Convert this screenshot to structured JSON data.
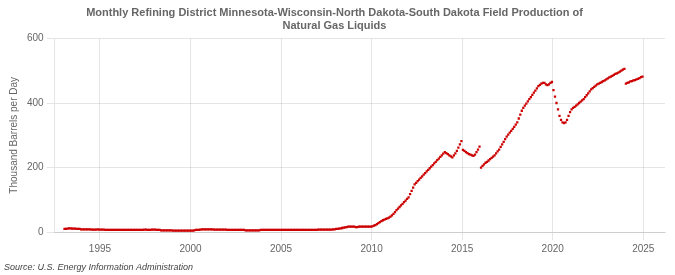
{
  "chart_data": {
    "type": "scatter",
    "title": "Monthly Refining District Minnesota-Wisconsin-North Dakota-South Dakota Field Production of\nNatural Gas Liquids",
    "ylabel": "Thousand Barrels per Day",
    "annotations": [
      "Source: U.S. Energy Information Administration"
    ],
    "color": "#cc0000",
    "marker": "square",
    "grid": true,
    "legend": false,
    "xlim": [
      1992.5,
      2026.2
    ],
    "xticks": [
      1995,
      2000,
      2005,
      2010,
      2015,
      2020,
      2025
    ],
    "ylim": [
      0,
      600
    ],
    "yticks": [
      0,
      200,
      400,
      600
    ],
    "x": [
      1993.0416666666667,
      1993.125,
      1993.2083333333333,
      1993.2916666666667,
      1993.375,
      1993.4583333333333,
      1993.5416666666667,
      1993.625,
      1993.7083333333333,
      1993.7916666666667,
      1993.875,
      1993.9583333333333,
      1994.0416666666667,
      1994.125,
      1994.2083333333333,
      1994.2916666666667,
      1994.375,
      1994.4583333333333,
      1994.5416666666667,
      1994.625,
      1994.7083333333333,
      1994.7916666666667,
      1994.875,
      1994.9583333333333,
      1995.0416666666667,
      1995.125,
      1995.2083333333333,
      1995.2916666666667,
      1995.375,
      1995.4583333333333,
      1995.5416666666667,
      1995.625,
      1995.7083333333333,
      1995.7916666666667,
      1995.875,
      1995.9583333333333,
      1996.0416666666667,
      1996.125,
      1996.2083333333333,
      1996.2916666666667,
      1996.375,
      1996.4583333333333,
      1996.5416666666667,
      1996.625,
      1996.7083333333333,
      1996.7916666666667,
      1996.875,
      1996.9583333333333,
      1997.0416666666667,
      1997.125,
      1997.2083333333333,
      1997.2916666666667,
      1997.375,
      1997.4583333333333,
      1997.5416666666667,
      1997.625,
      1997.7083333333333,
      1997.7916666666667,
      1997.875,
      1997.9583333333333,
      1998.0416666666667,
      1998.125,
      1998.2083333333333,
      1998.2916666666667,
      1998.375,
      1998.4583333333333,
      1998.5416666666667,
      1998.625,
      1998.7083333333333,
      1998.7916666666667,
      1998.875,
      1998.9583333333333,
      1999.0416666666667,
      1999.125,
      1999.2083333333333,
      1999.2916666666667,
      1999.375,
      1999.4583333333333,
      1999.5416666666667,
      1999.625,
      1999.7083333333333,
      1999.7916666666667,
      1999.875,
      1999.9583333333333,
      2000.0416666666667,
      2000.125,
      2000.2083333333333,
      2000.2916666666667,
      2000.375,
      2000.4583333333333,
      2000.5416666666667,
      2000.625,
      2000.7083333333333,
      2000.7916666666667,
      2000.875,
      2000.9583333333333,
      2001.0416666666667,
      2001.125,
      2001.2083333333333,
      2001.2916666666667,
      2001.375,
      2001.4583333333333,
      2001.5416666666667,
      2001.625,
      2001.7083333333333,
      2001.7916666666667,
      2001.875,
      2001.9583333333333,
      2002.0416666666667,
      2002.125,
      2002.2083333333333,
      2002.2916666666667,
      2002.375,
      2002.4583333333333,
      2002.5416666666667,
      2002.625,
      2002.7083333333333,
      2002.7916666666667,
      2002.875,
      2002.9583333333333,
      2003.0416666666667,
      2003.125,
      2003.2083333333333,
      2003.2916666666667,
      2003.375,
      2003.4583333333333,
      2003.5416666666667,
      2003.625,
      2003.7083333333333,
      2003.7916666666667,
      2003.875,
      2003.9583333333333,
      2004.0416666666667,
      2004.125,
      2004.2083333333333,
      2004.2916666666667,
      2004.375,
      2004.4583333333333,
      2004.5416666666667,
      2004.625,
      2004.7083333333333,
      2004.7916666666667,
      2004.875,
      2004.9583333333333,
      2005.0416666666667,
      2005.125,
      2005.2083333333333,
      2005.2916666666667,
      2005.375,
      2005.4583333333333,
      2005.5416666666667,
      2005.625,
      2005.7083333333333,
      2005.7916666666667,
      2005.875,
      2005.9583333333333,
      2006.0416666666667,
      2006.125,
      2006.2083333333333,
      2006.2916666666667,
      2006.375,
      2006.4583333333333,
      2006.5416666666667,
      2006.625,
      2006.7083333333333,
      2006.7916666666667,
      2006.875,
      2006.9583333333333,
      2007.0416666666667,
      2007.125,
      2007.2083333333333,
      2007.2916666666667,
      2007.375,
      2007.4583333333333,
      2007.5416666666667,
      2007.625,
      2007.7083333333333,
      2007.7916666666667,
      2007.875,
      2007.9583333333333,
      2008.0416666666667,
      2008.125,
      2008.2083333333333,
      2008.2916666666667,
      2008.375,
      2008.4583333333333,
      2008.5416666666667,
      2008.625,
      2008.7083333333333,
      2008.7916666666667,
      2008.875,
      2008.9583333333333,
      2009.0416666666667,
      2009.125,
      2009.2083333333333,
      2009.2916666666667,
      2009.375,
      2009.4583333333333,
      2009.5416666666667,
      2009.625,
      2009.7083333333333,
      2009.7916666666667,
      2009.875,
      2009.9583333333333,
      2010.0416666666667,
      2010.125,
      2010.2083333333333,
      2010.2916666666667,
      2010.375,
      2010.4583333333333,
      2010.5416666666667,
      2010.625,
      2010.7083333333333,
      2010.7916666666667,
      2010.875,
      2010.9583333333333,
      2011.0416666666667,
      2011.125,
      2011.2083333333333,
      2011.2916666666667,
      2011.375,
      2011.4583333333333,
      2011.5416666666667,
      2011.625,
      2011.7083333333333,
      2011.7916666666667,
      2011.875,
      2011.9583333333333,
      2012.0416666666667,
      2012.125,
      2012.2083333333333,
      2012.2916666666667,
      2012.375,
      2012.4583333333333,
      2012.5416666666667,
      2012.625,
      2012.7083333333333,
      2012.7916666666667,
      2012.875,
      2012.9583333333333,
      2013.0416666666667,
      2013.125,
      2013.2083333333333,
      2013.2916666666667,
      2013.375,
      2013.4583333333333,
      2013.5416666666667,
      2013.625,
      2013.7083333333333,
      2013.7916666666667,
      2013.875,
      2013.9583333333333,
      2014.0416666666667,
      2014.125,
      2014.2083333333333,
      2014.2916666666667,
      2014.375,
      2014.4583333333333,
      2014.5416666666667,
      2014.625,
      2014.7083333333333,
      2014.7916666666667,
      2014.875,
      2014.9583333333333,
      2015.0416666666667,
      2015.125,
      2015.2083333333333,
      2015.2916666666667,
      2015.375,
      2015.4583333333333,
      2015.5416666666667,
      2015.625,
      2015.7083333333333,
      2015.7916666666667,
      2015.875,
      2015.9583333333333,
      2016.0416666666667,
      2016.125,
      2016.2083333333333,
      2016.2916666666667,
      2016.375,
      2016.4583333333333,
      2016.5416666666667,
      2016.625,
      2016.7083333333333,
      2016.7916666666667,
      2016.875,
      2016.9583333333333,
      2017.0416666666667,
      2017.125,
      2017.2083333333333,
      2017.2916666666667,
      2017.375,
      2017.4583333333333,
      2017.5416666666667,
      2017.625,
      2017.7083333333333,
      2017.7916666666667,
      2017.875,
      2017.9583333333333,
      2018.0416666666667,
      2018.125,
      2018.2083333333333,
      2018.2916666666667,
      2018.375,
      2018.4583333333333,
      2018.5416666666667,
      2018.625,
      2018.7083333333333,
      2018.7916666666667,
      2018.875,
      2018.9583333333333,
      2019.0416666666667,
      2019.125,
      2019.2083333333333,
      2019.2916666666667,
      2019.375,
      2019.4583333333333,
      2019.5416666666667,
      2019.625,
      2019.7083333333333,
      2019.7916666666667,
      2019.875,
      2019.9583333333333,
      2020.0416666666667,
      2020.125,
      2020.2083333333333,
      2020.2916666666667,
      2020.375,
      2020.4583333333333,
      2020.5416666666667,
      2020.625,
      2020.7083333333333,
      2020.7916666666667,
      2020.875,
      2020.9583333333333,
      2021.0416666666667,
      2021.125,
      2021.2083333333333,
      2021.2916666666667,
      2021.375,
      2021.4583333333333,
      2021.5416666666667,
      2021.625,
      2021.7083333333333,
      2021.7916666666667,
      2021.875,
      2021.9583333333333,
      2022.0416666666667,
      2022.125,
      2022.2083333333333,
      2022.2916666666667,
      2022.375,
      2022.4583333333333,
      2022.5416666666667,
      2022.625,
      2022.7083333333333,
      2022.7916666666667,
      2022.875,
      2022.9583333333333,
      2023.0416666666667,
      2023.125,
      2023.2083333333333,
      2023.2916666666667,
      2023.375,
      2023.4583333333333,
      2023.5416666666667,
      2023.625,
      2023.7083333333333,
      2023.7916666666667,
      2023.875,
      2023.9583333333333,
      2024.0416666666667,
      2024.125,
      2024.2083333333333,
      2024.2916666666667,
      2024.375,
      2024.4583333333333,
      2024.5416666666667,
      2024.625,
      2024.7083333333333,
      2024.7916666666667,
      2024.875,
      2024.9583333333333
    ],
    "values": [
      10,
      10,
      11,
      12,
      12,
      11,
      11,
      11,
      10,
      10,
      10,
      9,
      9,
      9,
      9,
      9,
      9,
      9,
      8,
      8,
      8,
      8,
      9,
      8,
      8,
      8,
      8,
      7,
      7,
      7,
      7,
      7,
      7,
      7,
      7,
      7,
      7,
      7,
      7,
      7,
      7,
      7,
      7,
      7,
      7,
      7,
      7,
      7,
      7,
      7,
      7,
      7,
      7,
      8,
      8,
      7,
      7,
      7,
      8,
      8,
      8,
      7,
      7,
      7,
      6,
      6,
      6,
      6,
      6,
      6,
      6,
      6,
      5,
      5,
      5,
      5,
      5,
      5,
      5,
      5,
      5,
      5,
      5,
      5,
      5,
      5,
      6,
      7,
      7,
      7,
      8,
      9,
      9,
      9,
      9,
      9,
      9,
      9,
      9,
      8,
      8,
      8,
      8,
      8,
      8,
      8,
      8,
      8,
      7,
      7,
      7,
      7,
      7,
      7,
      7,
      7,
      7,
      7,
      7,
      7,
      6,
      6,
      6,
      6,
      6,
      6,
      6,
      6,
      6,
      6,
      7,
      7,
      7,
      7,
      7,
      7,
      7,
      7,
      7,
      7,
      7,
      7,
      7,
      7,
      7,
      7,
      7,
      7,
      7,
      7,
      7,
      7,
      7,
      7,
      7,
      7,
      7,
      7,
      7,
      7,
      7,
      7,
      7,
      7,
      7,
      7,
      7,
      7,
      8,
      8,
      8,
      8,
      8,
      8,
      8,
      8,
      8,
      8,
      9,
      9,
      10,
      10,
      11,
      12,
      13,
      14,
      15,
      16,
      17,
      17,
      17,
      17,
      17,
      16,
      16,
      17,
      17,
      17,
      17,
      17,
      17,
      17,
      17,
      17,
      18,
      20,
      22,
      25,
      28,
      31,
      34,
      37,
      39,
      41,
      43,
      45,
      48,
      52,
      57,
      62,
      68,
      73,
      78,
      83,
      88,
      93,
      98,
      103,
      108,
      118,
      128,
      138,
      148,
      153,
      158,
      163,
      168,
      173,
      178,
      183,
      188,
      193,
      198,
      203,
      208,
      213,
      218,
      223,
      228,
      233,
      238,
      243,
      248,
      245,
      242,
      238,
      235,
      232,
      238,
      244,
      252,
      262,
      272,
      282,
      255,
      252,
      248,
      245,
      242,
      240,
      238,
      236,
      240,
      248,
      256,
      265,
      200,
      205,
      210,
      215,
      218,
      222,
      226,
      230,
      234,
      238,
      244,
      250,
      256,
      264,
      272,
      280,
      288,
      296,
      302,
      308,
      314,
      320,
      326,
      333,
      340,
      352,
      364,
      376,
      385,
      392,
      398,
      405,
      412,
      418,
      425,
      432,
      438,
      445,
      452,
      456,
      460,
      462,
      462,
      458,
      455,
      458,
      462,
      465,
      440,
      420,
      400,
      380,
      360,
      348,
      340,
      338,
      340,
      348,
      360,
      372,
      380,
      385,
      388,
      392,
      396,
      400,
      404,
      408,
      412,
      418,
      424,
      430,
      436,
      442,
      446,
      450,
      454,
      458,
      460,
      462,
      465,
      468,
      470,
      473,
      476,
      479,
      482,
      484,
      487,
      490,
      492,
      494,
      497,
      500,
      503,
      506,
      460,
      462,
      464,
      467,
      468,
      470,
      471,
      473,
      475,
      477,
      480,
      482
    ]
  }
}
